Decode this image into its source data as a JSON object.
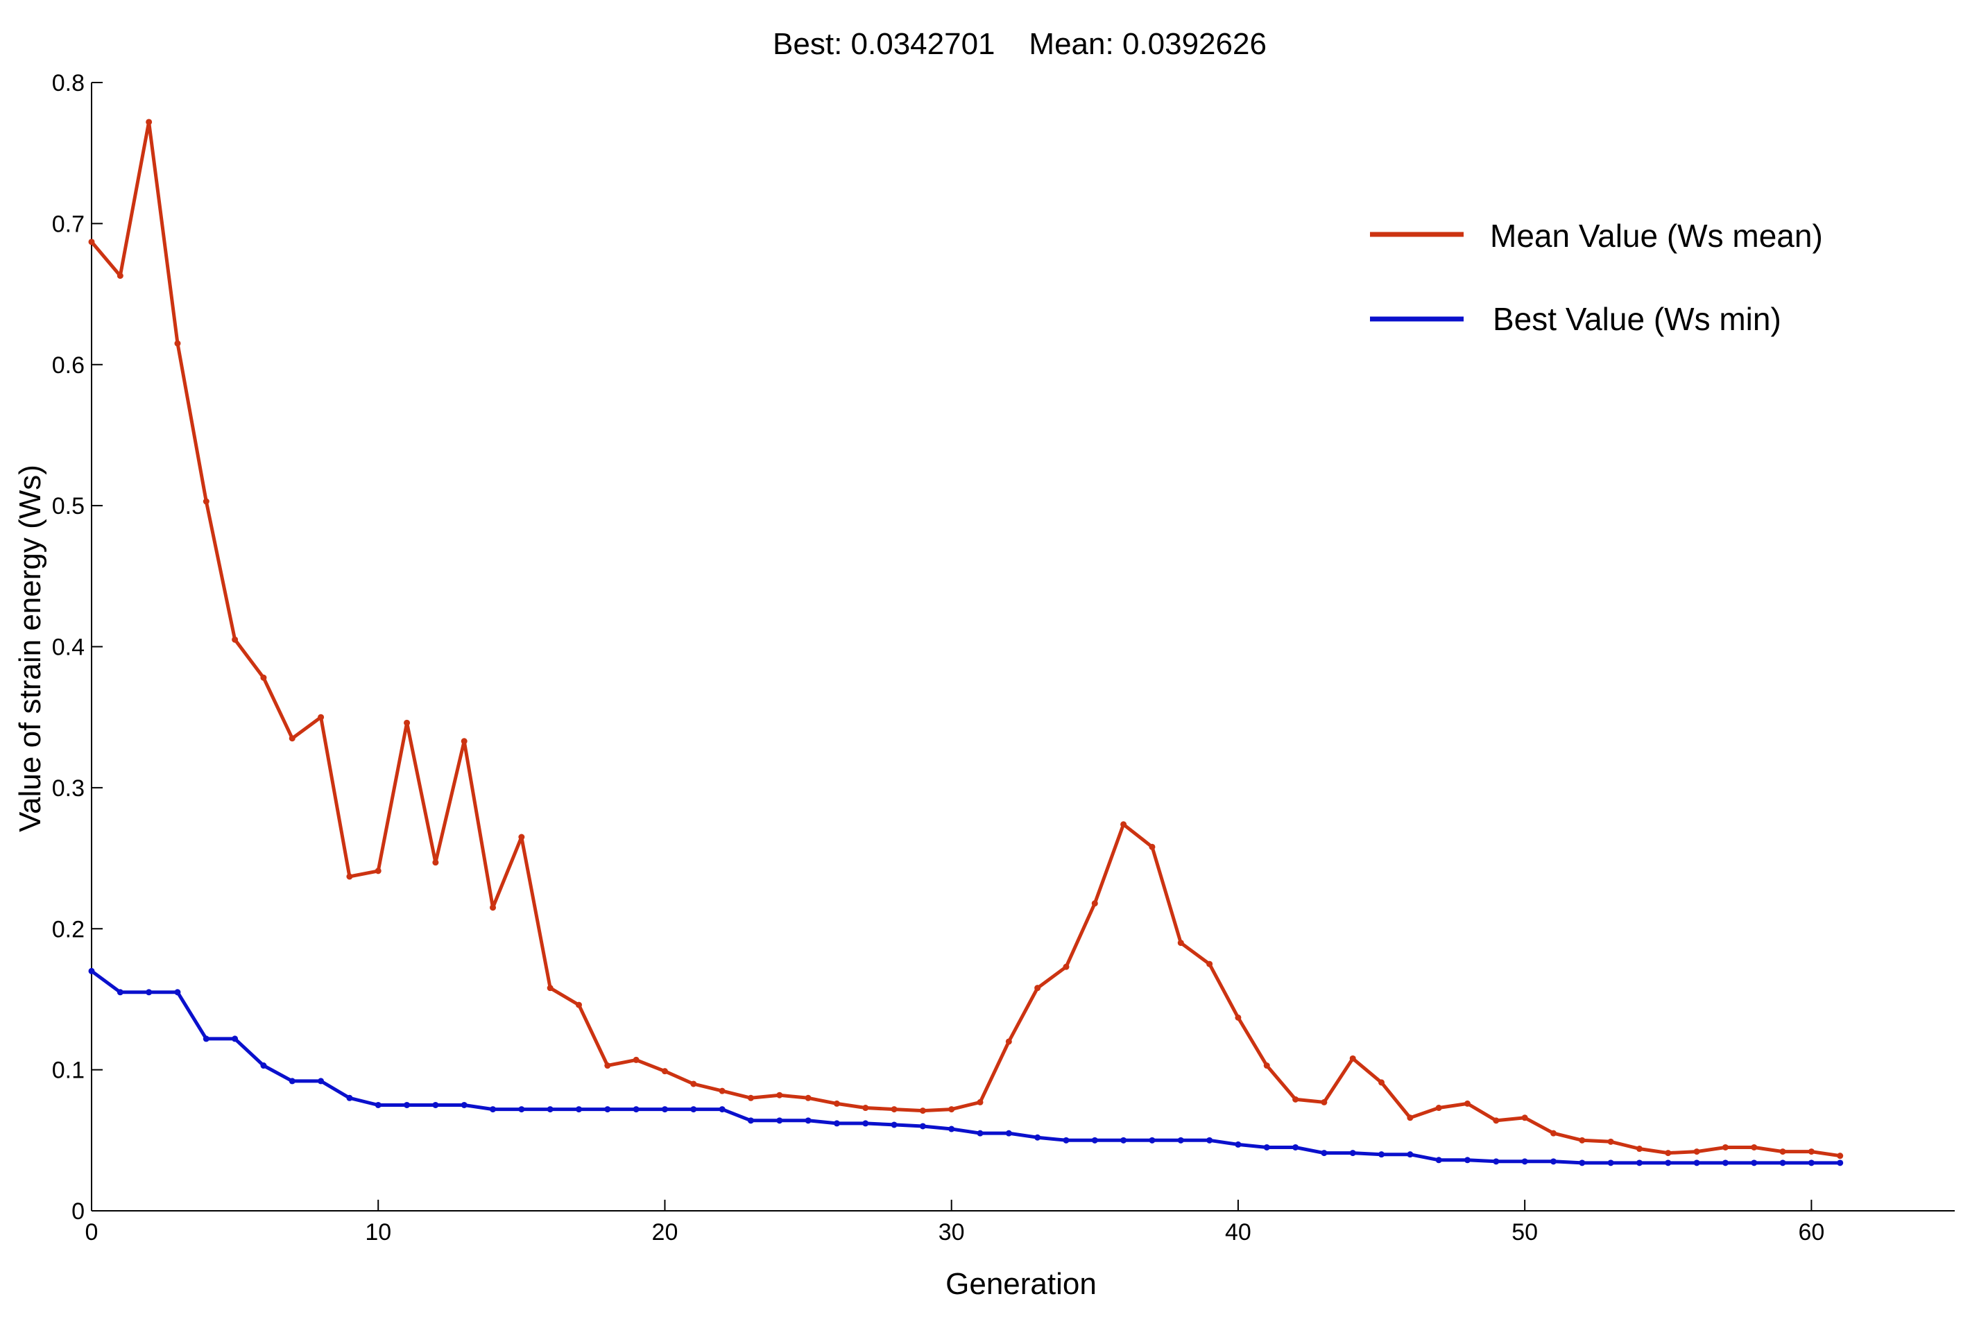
{
  "chart_data": {
    "type": "line",
    "title": "Best: 0.0342701    Mean: 0.0392626",
    "xlabel": "Generation",
    "ylabel": "Value of strain energy (Ws)",
    "xlim": [
      0,
      65
    ],
    "ylim": [
      0,
      0.8
    ],
    "xticks": [
      0,
      10,
      20,
      30,
      40,
      50,
      60
    ],
    "yticks": [
      0,
      0.1,
      0.2,
      0.3,
      0.4,
      0.5,
      0.6,
      0.7,
      0.8
    ],
    "x": [
      0,
      1,
      2,
      3,
      4,
      5,
      6,
      7,
      8,
      9,
      10,
      11,
      12,
      13,
      14,
      15,
      16,
      17,
      18,
      19,
      20,
      21,
      22,
      23,
      24,
      25,
      26,
      27,
      28,
      29,
      30,
      31,
      32,
      33,
      34,
      35,
      36,
      37,
      38,
      39,
      40,
      41,
      42,
      43,
      44,
      45,
      46,
      47,
      48,
      49,
      50,
      51,
      52,
      53,
      54,
      55,
      56,
      57,
      58,
      59,
      60,
      61
    ],
    "series": [
      {
        "name": "Mean Value (Ws mean)",
        "color": "#cc3311",
        "values": [
          0.687,
          0.663,
          0.772,
          0.615,
          0.503,
          0.405,
          0.378,
          0.335,
          0.35,
          0.237,
          0.241,
          0.346,
          0.247,
          0.333,
          0.215,
          0.265,
          0.158,
          0.146,
          0.103,
          0.107,
          0.099,
          0.09,
          0.085,
          0.08,
          0.082,
          0.08,
          0.076,
          0.073,
          0.072,
          0.071,
          0.072,
          0.077,
          0.12,
          0.158,
          0.173,
          0.218,
          0.274,
          0.258,
          0.19,
          0.175,
          0.137,
          0.103,
          0.079,
          0.077,
          0.108,
          0.091,
          0.066,
          0.073,
          0.076,
          0.064,
          0.066,
          0.055,
          0.05,
          0.049,
          0.044,
          0.041,
          0.042,
          0.045,
          0.045,
          0.042,
          0.042,
          0.039
        ]
      },
      {
        "name": "Best Value (Ws min)",
        "color": "#0a10cc",
        "values": [
          0.17,
          0.155,
          0.155,
          0.155,
          0.122,
          0.122,
          0.103,
          0.092,
          0.092,
          0.08,
          0.075,
          0.075,
          0.075,
          0.075,
          0.072,
          0.072,
          0.072,
          0.072,
          0.072,
          0.072,
          0.072,
          0.072,
          0.072,
          0.064,
          0.064,
          0.064,
          0.062,
          0.062,
          0.061,
          0.06,
          0.058,
          0.055,
          0.055,
          0.052,
          0.05,
          0.05,
          0.05,
          0.05,
          0.05,
          0.05,
          0.047,
          0.045,
          0.045,
          0.041,
          0.041,
          0.04,
          0.04,
          0.036,
          0.036,
          0.035,
          0.035,
          0.035,
          0.034,
          0.034,
          0.034,
          0.034,
          0.034,
          0.034,
          0.034,
          0.034,
          0.034,
          0.034
        ]
      }
    ],
    "legend": {
      "position": "top-right",
      "entries": [
        "Mean Value (Ws mean)",
        "Best Value (Ws min)"
      ]
    }
  }
}
